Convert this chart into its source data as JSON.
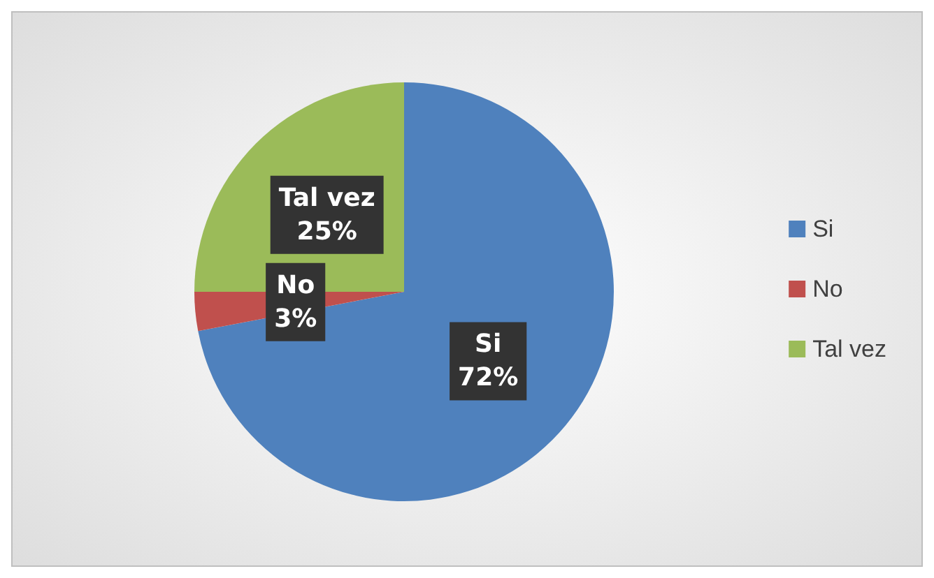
{
  "chart_data": {
    "type": "pie",
    "categories": [
      "Si",
      "No",
      "Tal vez"
    ],
    "values": [
      72,
      3,
      25
    ],
    "value_labels": [
      "72%",
      "3%",
      "25%"
    ],
    "colors": [
      "#4f81bd",
      "#c0504d",
      "#9bbb59"
    ],
    "legend": "right"
  }
}
